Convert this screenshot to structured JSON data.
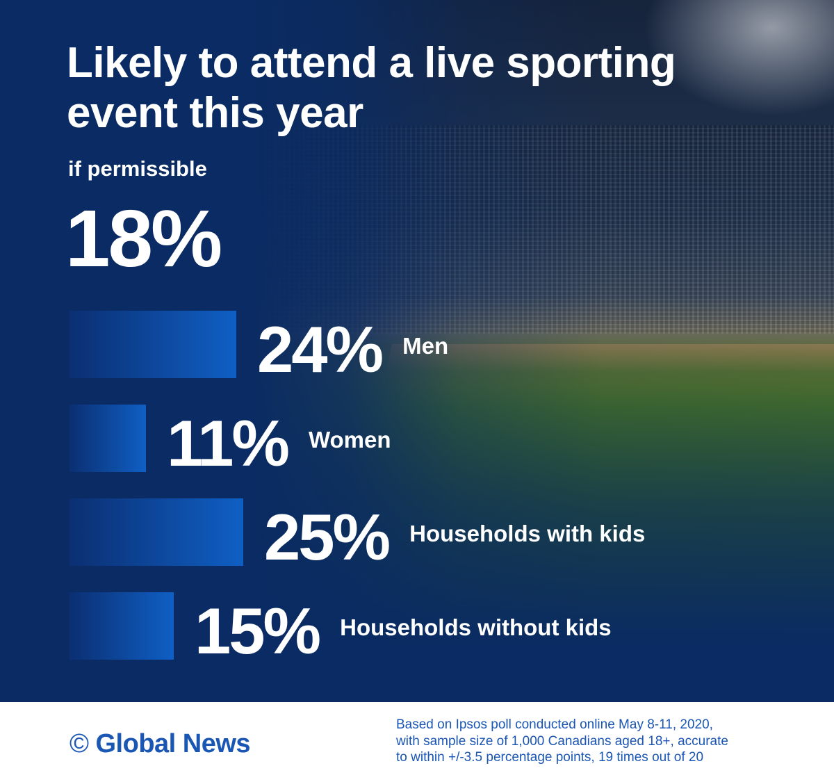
{
  "title": "Likely to attend a live sporting event this year",
  "subtitle": "if permissible",
  "headline_value": "18%",
  "colors": {
    "background_navy": "#0a2b63",
    "bar_light": "#0f5fc4",
    "bar_dark": "#0b2f72",
    "text": "#ffffff",
    "brand_blue": "#1a56b4"
  },
  "chart_data": {
    "type": "bar",
    "orientation": "horizontal",
    "categories": [
      "Men",
      "Women",
      "Households with kids",
      "Households without kids"
    ],
    "values": [
      24,
      11,
      25,
      15
    ],
    "value_labels": [
      "24%",
      "11%",
      "25%",
      "15%"
    ],
    "unit": "%",
    "xlim": [
      0,
      100
    ],
    "grid": false,
    "legend": "none"
  },
  "footer": {
    "brand_symbol": "©",
    "brand": "Global News",
    "source_lines": [
      "Based on Ipsos poll conducted online May 8-11, 2020,",
      "with sample size of 1,000 Canadians aged 18+, accurate",
      "to within +/-3.5 percentage points, 19 times out of 20"
    ]
  }
}
